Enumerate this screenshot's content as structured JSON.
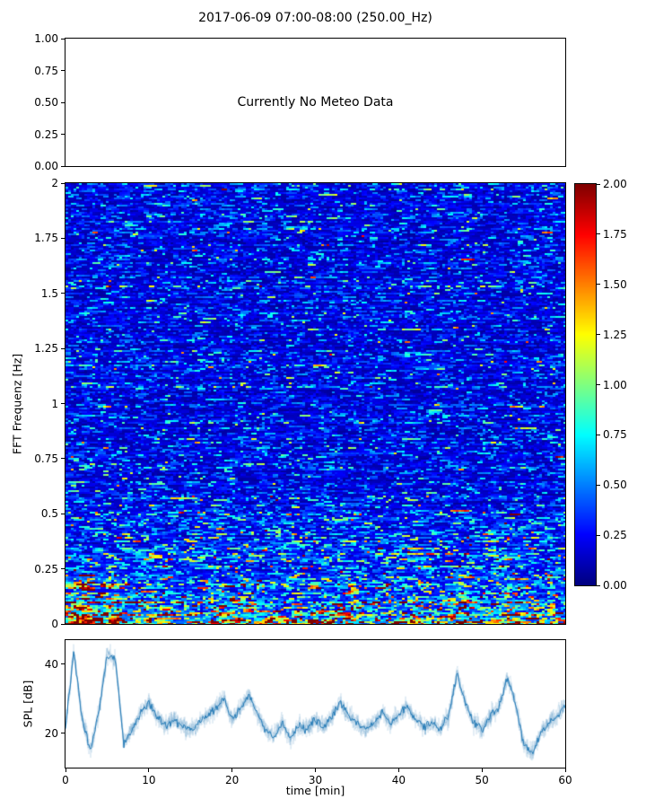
{
  "title": "2017-06-09 07:00-08:00 (250.00_Hz)",
  "chart_data": [
    {
      "type": "empty",
      "panel": "meteo",
      "annotation": "Currently No Meteo Data",
      "ylim": [
        0,
        1
      ],
      "ytick_values": [
        1.0,
        0.75,
        0.5,
        0.25,
        0.0
      ],
      "ytick_labels": [
        "1.00",
        "0.75",
        "0.50",
        "0.25",
        "0.00"
      ]
    },
    {
      "type": "heatmap",
      "panel": "fft-spectrogram",
      "ylabel": "FFT Frequenz [Hz]",
      "xlim": [
        0,
        60
      ],
      "ylim": [
        0,
        2
      ],
      "ytick_values": [
        2,
        1.75,
        1.5,
        1.25,
        1,
        0.75,
        0.5,
        0.25,
        0
      ],
      "ytick_labels": [
        "2",
        "1.75",
        "1.5",
        "1.25",
        "1",
        "0.75",
        "0.5",
        "0.25",
        "0"
      ],
      "colormap": "jet",
      "clim": [
        0,
        2
      ],
      "colorbar_tick_values": [
        2.0,
        1.75,
        1.5,
        1.25,
        1.0,
        0.75,
        0.5,
        0.25,
        0.0
      ],
      "colorbar_tick_labels": [
        "2.00",
        "1.75",
        "1.50",
        "1.25",
        "1.00",
        "0.75",
        "0.50",
        "0.25",
        "0.00"
      ],
      "intensity_profile": {
        "freq_breaks": [
          0.02,
          0.05,
          0.1,
          0.2,
          0.35,
          0.6,
          2.0
        ],
        "mean_values": [
          1.15,
          0.9,
          0.6,
          0.45,
          0.33,
          0.26,
          0.2
        ]
      },
      "bursts": {
        "times": [
          2.0,
          5.5,
          10,
          19,
          22,
          33,
          41,
          47.5,
          53.5
        ],
        "amps": [
          1.4,
          1.2,
          0.4,
          0.4,
          0.4,
          0.35,
          0.3,
          0.7,
          0.6
        ],
        "widths": [
          1.8,
          1.2,
          1.5,
          2.0,
          1.5,
          2.0,
          2.0,
          1.5,
          1.5
        ]
      }
    },
    {
      "type": "line",
      "panel": "spl",
      "xlabel": "time [min]",
      "ylabel": "SPL [dB]",
      "color": "#1f77b4",
      "xlim": [
        0,
        60
      ],
      "ylim": [
        10,
        47
      ],
      "xtick_values": [
        0,
        10,
        20,
        30,
        40,
        50,
        60
      ],
      "xtick_labels": [
        "0",
        "10",
        "20",
        "30",
        "40",
        "50",
        "60"
      ],
      "ytick_values": [
        40,
        20
      ],
      "ytick_labels": [
        "40",
        "20"
      ],
      "x": [
        0,
        1,
        2,
        3,
        4,
        5,
        6,
        7,
        8,
        9,
        10,
        11,
        12,
        13,
        14,
        15,
        16,
        17,
        18,
        19,
        20,
        21,
        22,
        23,
        24,
        25,
        26,
        27,
        28,
        29,
        30,
        31,
        32,
        33,
        34,
        35,
        36,
        37,
        38,
        39,
        40,
        41,
        42,
        43,
        44,
        45,
        46,
        47,
        48,
        49,
        50,
        51,
        52,
        53,
        54,
        55,
        56,
        57,
        58,
        59,
        60
      ],
      "y": [
        22,
        44,
        24,
        15,
        26,
        43,
        41,
        17,
        21,
        26,
        29,
        25,
        22,
        24,
        22,
        21,
        23,
        25,
        27,
        30,
        24,
        27,
        31,
        26,
        21,
        19,
        23,
        18,
        22,
        21,
        24,
        22,
        25,
        29,
        25,
        23,
        21,
        23,
        26,
        23,
        25,
        28,
        24,
        22,
        23,
        21,
        25,
        37,
        29,
        23,
        21,
        25,
        27,
        36,
        29,
        17,
        14,
        20,
        23,
        25,
        28
      ]
    }
  ]
}
